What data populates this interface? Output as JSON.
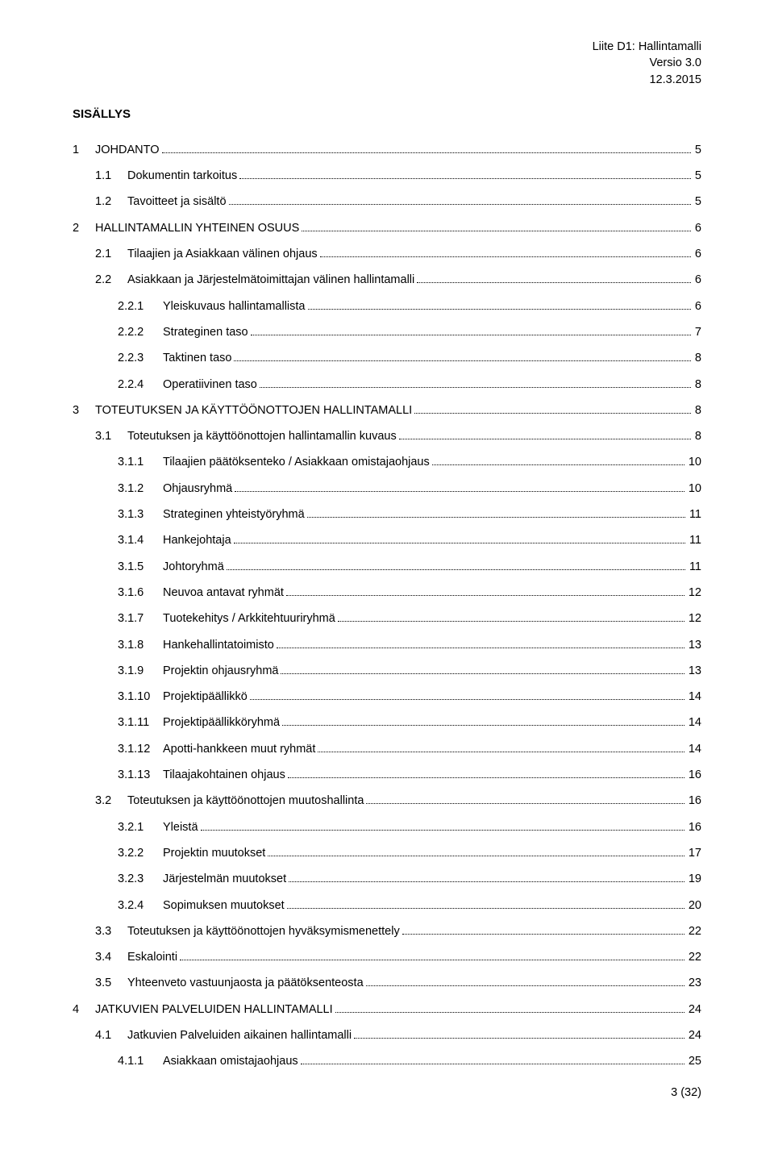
{
  "header": {
    "line1": "Liite D1: Hallintamalli",
    "line2": "Versio 3.0",
    "line3": "12.3.2015"
  },
  "toc_title": "SISÄLLYS",
  "toc": [
    {
      "level": 0,
      "num": "1",
      "text": "JOHDANTO",
      "page": "5"
    },
    {
      "level": 1,
      "num": "1.1",
      "text": "Dokumentin tarkoitus",
      "page": "5"
    },
    {
      "level": 1,
      "num": "1.2",
      "text": "Tavoitteet ja sisältö",
      "page": "5"
    },
    {
      "level": 0,
      "num": "2",
      "text": "HALLINTAMALLIN YHTEINEN OSUUS",
      "page": "6"
    },
    {
      "level": 1,
      "num": "2.1",
      "text": "Tilaajien ja Asiakkaan välinen ohjaus",
      "page": "6"
    },
    {
      "level": 1,
      "num": "2.2",
      "text": "Asiakkaan ja Järjestelmätoimittajan välinen hallintamalli",
      "page": "6"
    },
    {
      "level": 2,
      "num": "2.2.1",
      "text": "Yleiskuvaus hallintamallista",
      "page": "6"
    },
    {
      "level": 2,
      "num": "2.2.2",
      "text": "Strateginen taso",
      "page": "7"
    },
    {
      "level": 2,
      "num": "2.2.3",
      "text": "Taktinen taso",
      "page": "8"
    },
    {
      "level": 2,
      "num": "2.2.4",
      "text": "Operatiivinen taso",
      "page": "8"
    },
    {
      "level": 0,
      "num": "3",
      "text": "TOTEUTUKSEN JA KÄYTTÖÖNOTTOJEN HALLINTAMALLI",
      "page": "8"
    },
    {
      "level": 1,
      "num": "3.1",
      "text": "Toteutuksen ja käyttöönottojen hallintamallin kuvaus",
      "page": "8"
    },
    {
      "level": 2,
      "num": "3.1.1",
      "text": "Tilaajien päätöksenteko / Asiakkaan omistajaohjaus",
      "page": "10"
    },
    {
      "level": 2,
      "num": "3.1.2",
      "text": "Ohjausryhmä",
      "page": "10"
    },
    {
      "level": 2,
      "num": "3.1.3",
      "text": "Strateginen yhteistyöryhmä",
      "page": "11"
    },
    {
      "level": 2,
      "num": "3.1.4",
      "text": "Hankejohtaja",
      "page": "11"
    },
    {
      "level": 2,
      "num": "3.1.5",
      "text": "Johtoryhmä",
      "page": "11"
    },
    {
      "level": 2,
      "num": "3.1.6",
      "text": "Neuvoa antavat ryhmät",
      "page": "12"
    },
    {
      "level": 2,
      "num": "3.1.7",
      "text": "Tuotekehitys / Arkkitehtuuriryhmä",
      "page": "12"
    },
    {
      "level": 2,
      "num": "3.1.8",
      "text": "Hankehallintatoimisto",
      "page": "13"
    },
    {
      "level": 2,
      "num": "3.1.9",
      "text": "Projektin ohjausryhmä",
      "page": "13"
    },
    {
      "level": 2,
      "num": "3.1.10",
      "text": "Projektipäällikkö",
      "page": "14"
    },
    {
      "level": 2,
      "num": "3.1.11",
      "text": "Projektipäällikköryhmä",
      "page": "14"
    },
    {
      "level": 2,
      "num": "3.1.12",
      "text": "Apotti-hankkeen muut ryhmät",
      "page": "14"
    },
    {
      "level": 2,
      "num": "3.1.13",
      "text": "Tilaajakohtainen ohjaus",
      "page": "16"
    },
    {
      "level": 1,
      "num": "3.2",
      "text": "Toteutuksen ja käyttöönottojen muutoshallinta",
      "page": "16"
    },
    {
      "level": 2,
      "num": "3.2.1",
      "text": "Yleistä",
      "page": "16"
    },
    {
      "level": 2,
      "num": "3.2.2",
      "text": "Projektin muutokset",
      "page": "17"
    },
    {
      "level": 2,
      "num": "3.2.3",
      "text": "Järjestelmän muutokset",
      "page": "19"
    },
    {
      "level": 2,
      "num": "3.2.4",
      "text": "Sopimuksen muutokset",
      "page": "20"
    },
    {
      "level": 1,
      "num": "3.3",
      "text": "Toteutuksen ja käyttöönottojen hyväksymismenettely",
      "page": "22"
    },
    {
      "level": 1,
      "num": "3.4",
      "text": "Eskalointi",
      "page": "22"
    },
    {
      "level": 1,
      "num": "3.5",
      "text": "Yhteenveto vastuunjaosta ja päätöksenteosta",
      "page": "23"
    },
    {
      "level": 0,
      "num": "4",
      "text": "JATKUVIEN PALVELUIDEN HALLINTAMALLI",
      "page": "24"
    },
    {
      "level": 1,
      "num": "4.1",
      "text": "Jatkuvien Palveluiden aikainen hallintamalli",
      "page": "24"
    },
    {
      "level": 2,
      "num": "4.1.1",
      "text": "Asiakkaan omistajaohjaus",
      "page": "25"
    }
  ],
  "footer": "3 (32)"
}
